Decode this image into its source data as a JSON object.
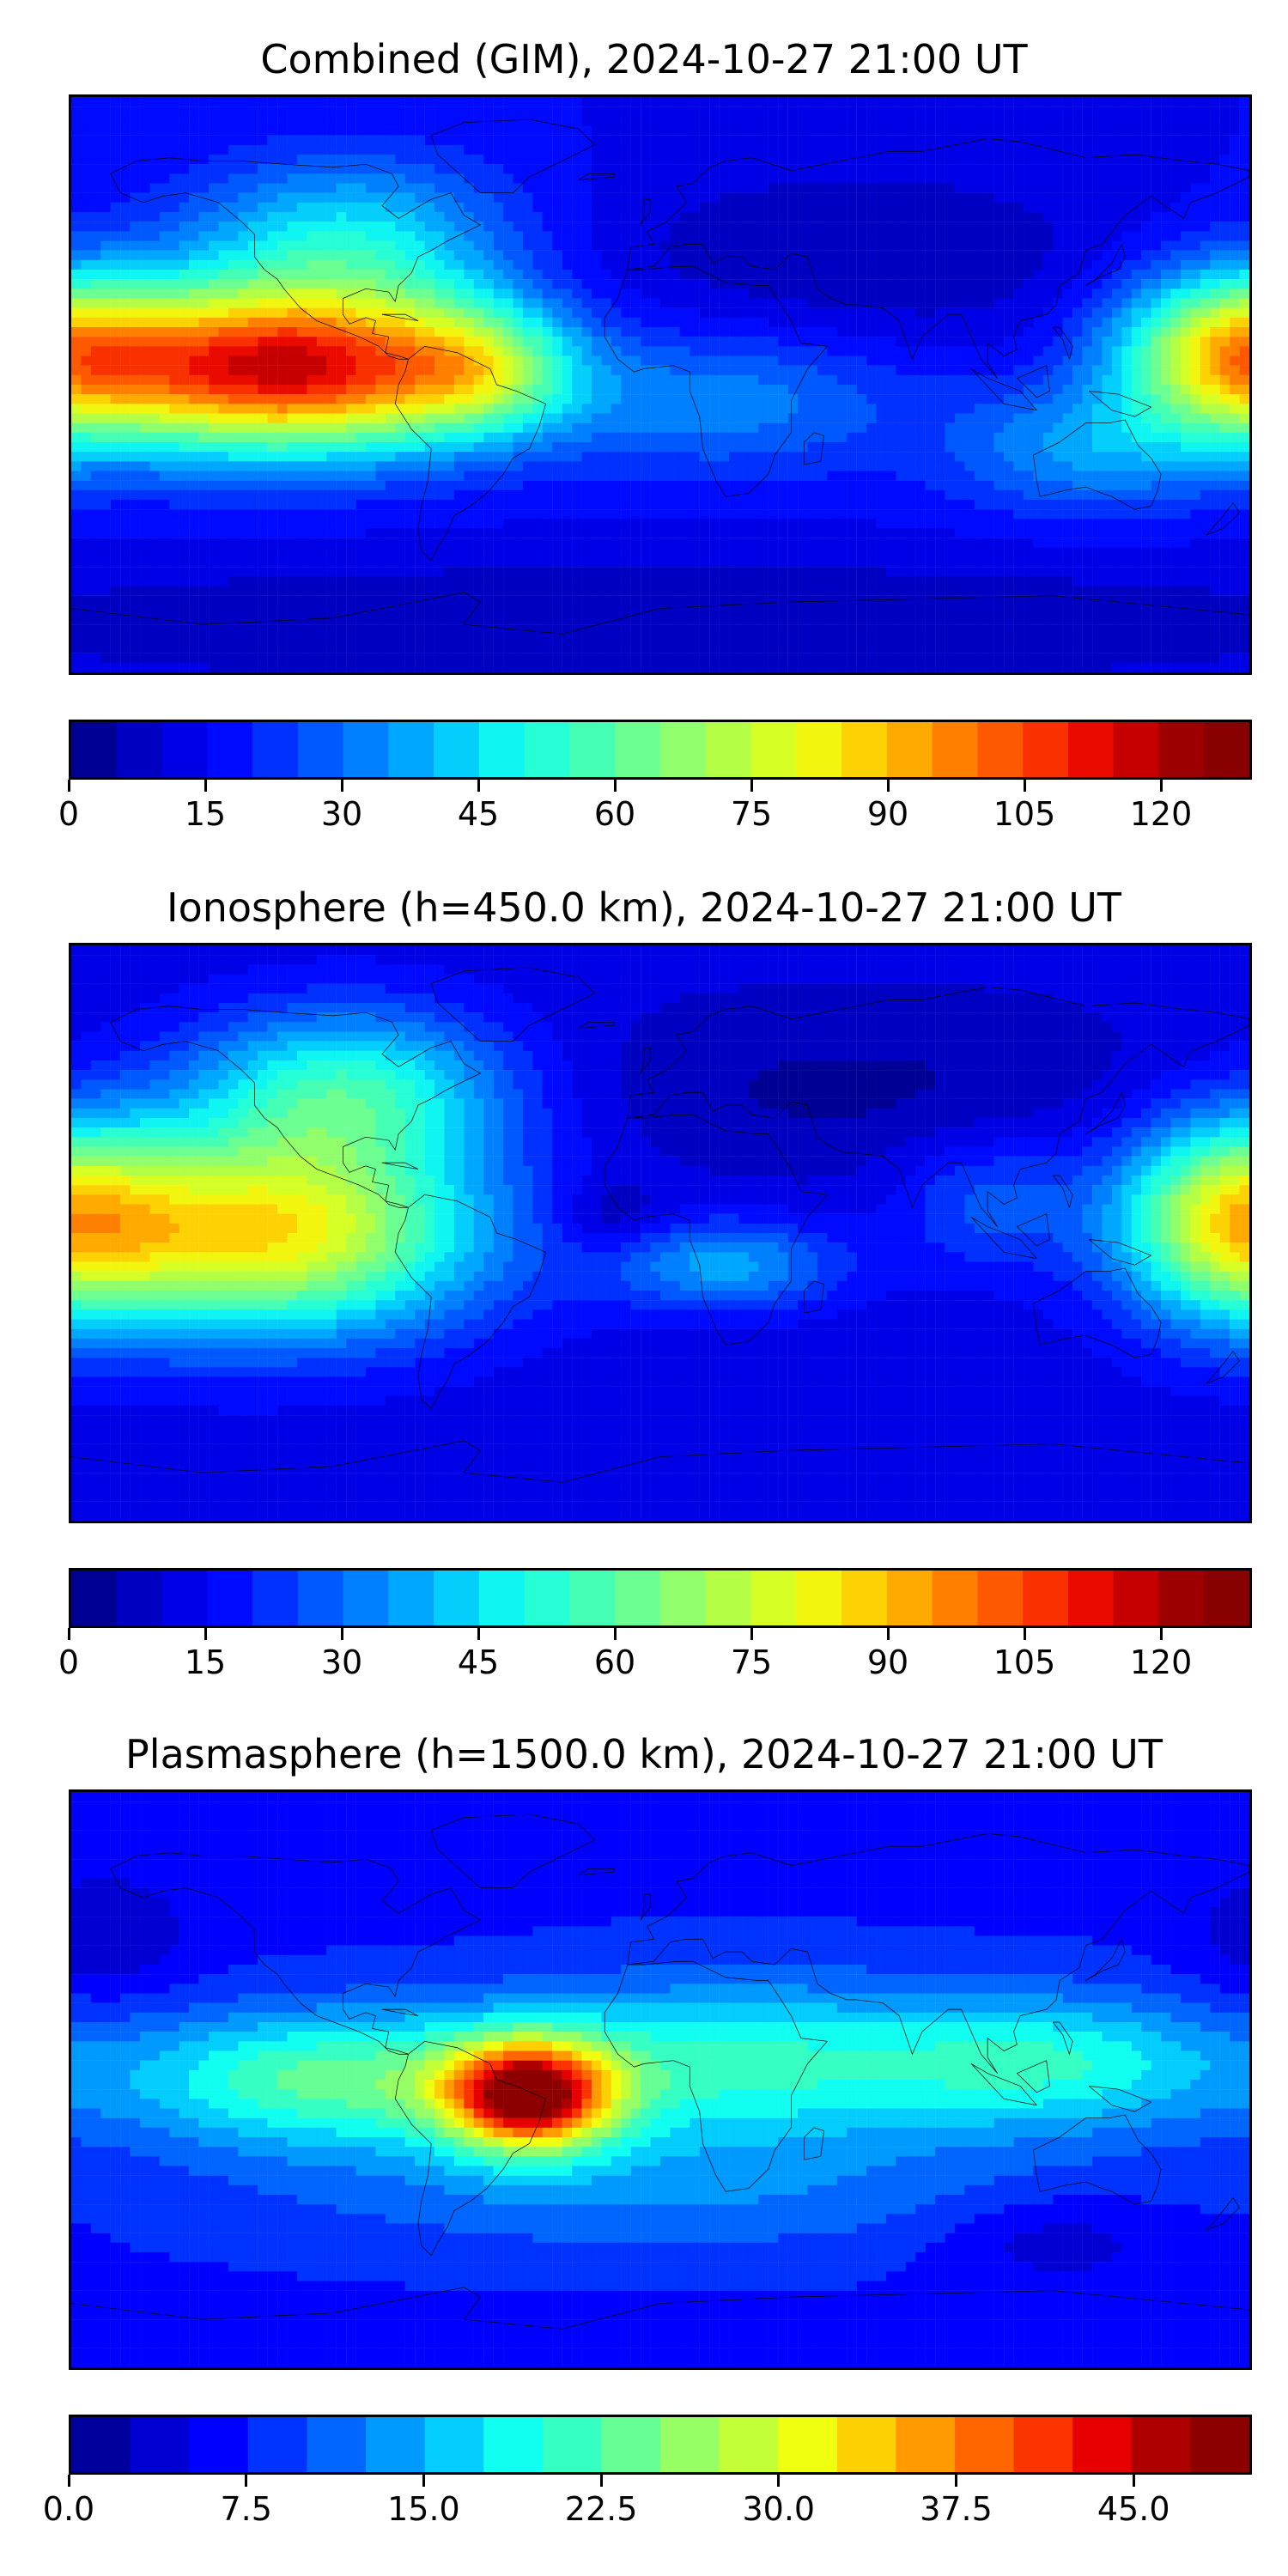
{
  "panels": [
    {
      "title": "Combined (GIM), 2024-10-27 21:00 UT",
      "levels": [
        0,
        5,
        10,
        15,
        20,
        25,
        30,
        35,
        40,
        45,
        50,
        55,
        60,
        65,
        70,
        75,
        80,
        85,
        90,
        95,
        100,
        105,
        110,
        115,
        120,
        125,
        130
      ],
      "ticks": [
        "0",
        "15",
        "30",
        "45",
        "60",
        "75",
        "90",
        "105",
        "120"
      ],
      "tick_values": [
        0,
        15,
        30,
        45,
        60,
        75,
        90,
        105,
        120
      ],
      "max": 130,
      "field": {
        "base": 15,
        "blobs": [
          {
            "lon": -115,
            "lat": 5,
            "slon": 42,
            "slat": 18,
            "amp": 100
          },
          {
            "lon": -55,
            "lat": 5,
            "slon": 20,
            "slat": 14,
            "amp": 35
          },
          {
            "lon": -95,
            "lat": 45,
            "slon": 35,
            "slat": 18,
            "amp": 30
          },
          {
            "lon": 175,
            "lat": 10,
            "slon": 25,
            "slat": 18,
            "amp": 60
          },
          {
            "lon": 130,
            "lat": -20,
            "slon": 30,
            "slat": 14,
            "amp": 20
          },
          {
            "lon": 20,
            "lat": -5,
            "slon": 40,
            "slat": 16,
            "amp": 18
          },
          {
            "lon": 60,
            "lat": 40,
            "slon": 60,
            "slat": 20,
            "amp": -10
          },
          {
            "lon": 0,
            "lat": -75,
            "slon": 180,
            "slat": 15,
            "amp": -10
          }
        ]
      }
    },
    {
      "title": "Ionosphere  (h=450.0 km), 2024-10-27 21:00 UT",
      "levels": [
        0,
        5,
        10,
        15,
        20,
        25,
        30,
        35,
        40,
        45,
        50,
        55,
        60,
        65,
        70,
        75,
        80,
        85,
        90,
        95,
        100,
        105,
        110,
        115,
        120,
        125,
        130
      ],
      "ticks": [
        "0",
        "15",
        "30",
        "45",
        "60",
        "75",
        "90",
        "105",
        "120"
      ],
      "tick_values": [
        0,
        15,
        30,
        45,
        60,
        75,
        90,
        105,
        120
      ],
      "max": 130,
      "field": {
        "base": 12,
        "blobs": [
          {
            "lon": -120,
            "lat": 0,
            "slon": 45,
            "slat": 22,
            "amp": 72
          },
          {
            "lon": -95,
            "lat": 45,
            "slon": 35,
            "slat": 18,
            "amp": 40
          },
          {
            "lon": 175,
            "lat": 5,
            "slon": 25,
            "slat": 22,
            "amp": 55
          },
          {
            "lon": 20,
            "lat": -10,
            "slon": 25,
            "slat": 10,
            "amp": 25
          },
          {
            "lon": -15,
            "lat": 5,
            "slon": 12,
            "slat": 8,
            "amp": -10
          },
          {
            "lon": 60,
            "lat": 45,
            "slon": 70,
            "slat": 20,
            "amp": -8
          },
          {
            "lon": 100,
            "lat": 10,
            "slon": 20,
            "slat": 15,
            "amp": 15
          }
        ]
      }
    },
    {
      "title": "Plasmasphere (h=1500.0 km), 2024-10-27 21:00 UT",
      "levels": [
        0,
        2.5,
        5,
        7.5,
        10,
        12.5,
        15,
        17.5,
        20,
        22.5,
        25,
        27.5,
        30,
        32.5,
        35,
        37.5,
        40,
        42.5,
        45,
        47.5,
        50
      ],
      "ticks": [
        "0.0",
        "7.5",
        "15.0",
        "22.5",
        "30.0",
        "37.5",
        "45.0"
      ],
      "tick_values": [
        0,
        7.5,
        15,
        22.5,
        30,
        37.5,
        45
      ],
      "max": 50,
      "field": {
        "base": 7,
        "blobs": [
          {
            "lon": -40,
            "lat": -5,
            "slon": 18,
            "slat": 12,
            "amp": 35
          },
          {
            "lon": -100,
            "lat": 0,
            "slon": 45,
            "slat": 15,
            "amp": 16
          },
          {
            "lon": 20,
            "lat": 5,
            "slon": 50,
            "slat": 18,
            "amp": 13
          },
          {
            "lon": 120,
            "lat": 5,
            "slon": 40,
            "slat": 15,
            "amp": 12
          },
          {
            "lon": 0,
            "lat": -35,
            "slon": 90,
            "slat": 15,
            "amp": 5
          },
          {
            "lon": 120,
            "lat": -50,
            "slon": 25,
            "slat": 10,
            "amp": -4
          },
          {
            "lon": -170,
            "lat": 45,
            "slon": 20,
            "slat": 15,
            "amp": -4
          }
        ]
      }
    }
  ],
  "colormap": [
    "#00007f",
    "#0000c8",
    "#0000ff",
    "#0040ff",
    "#0080ff",
    "#00c0ff",
    "#10fff0",
    "#40ffb8",
    "#80ff80",
    "#b8ff40",
    "#f0ff10",
    "#ffc400",
    "#ff8000",
    "#ff4000",
    "#e60000",
    "#a00000",
    "#7f0000"
  ],
  "coastline_color": "#000000"
}
